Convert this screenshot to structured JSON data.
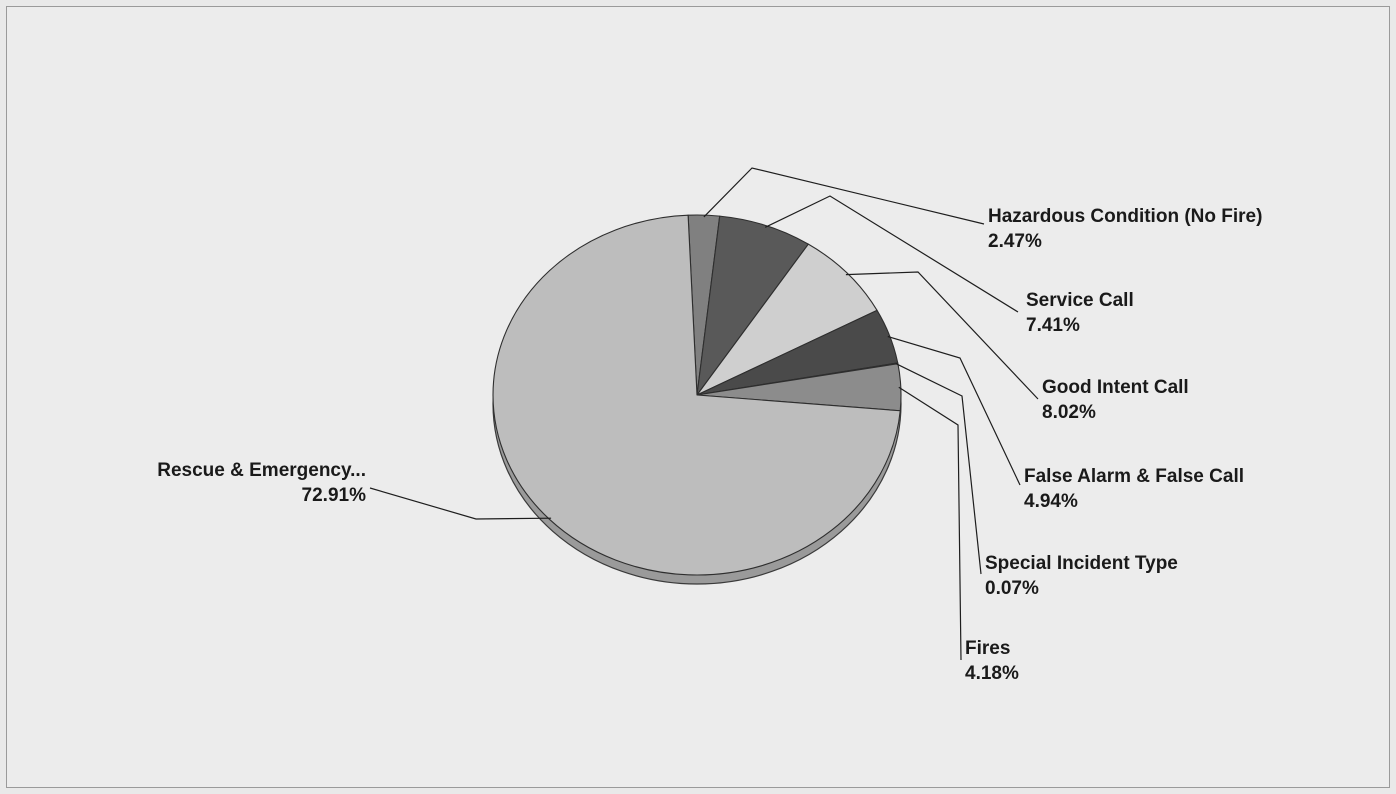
{
  "chart_data": {
    "type": "pie",
    "title": "",
    "start_angle_deg": -92.5,
    "direction": "clockwise",
    "style": "3d-tilted",
    "slices": [
      {
        "label": "Hazardous Condition (No Fire)",
        "value_label": "2.47%",
        "value": 2.47,
        "color": "#808080"
      },
      {
        "label": "Service Call",
        "value_label": "7.41%",
        "value": 7.41,
        "color": "#595959"
      },
      {
        "label": "Good Intent Call",
        "value_label": "8.02%",
        "value": 8.02,
        "color": "#cfcfcf"
      },
      {
        "label": "False Alarm & False Call",
        "value_label": "4.94%",
        "value": 4.94,
        "color": "#4a4a4a"
      },
      {
        "label": "Special Incident Type",
        "value_label": "0.07%",
        "value": 0.07,
        "color": "#aaaaaa"
      },
      {
        "label": "Fires",
        "value_label": "4.18%",
        "value": 4.18,
        "color": "#8c8c8c"
      },
      {
        "label": "Rescue & Emergency...",
        "value_label": "72.91%",
        "value": 72.91,
        "color": "#bdbdbd"
      }
    ]
  }
}
